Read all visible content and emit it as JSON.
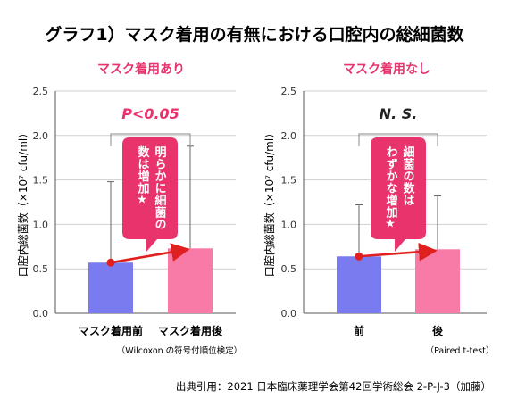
{
  "main_title": "グラフ1）マスク着用の有無における口腔内の総細菌数",
  "source": "出典引用：2021 日本臨床薬理学会第42回学術総会 2-P-J-3（加藤）",
  "colors": {
    "pink": "#e8336d",
    "bar_before": "#7b7bf0",
    "bar_after": "#f87aa6",
    "trend": "#e0201e",
    "grid": "#cfcfcf"
  },
  "chart_data": [
    {
      "type": "bar",
      "title": "マスク着用あり",
      "categories": [
        "マスク着用前",
        "マスク着用後"
      ],
      "values": [
        0.57,
        0.73
      ],
      "error_upper": [
        1.48,
        1.88
      ],
      "ylim": [
        0,
        2.5
      ],
      "yticks": [
        "0.0",
        "0.5",
        "1.0",
        "1.5",
        "2.0",
        "2.5"
      ],
      "ylabel": "口腔内総菌数（×10⁷ cfu/ml）",
      "significance": "P<0.05",
      "callout": [
        "明らかに細菌の",
        "数は増加★"
      ],
      "note": "（Wilcoxon の符号付順位検定）"
    },
    {
      "type": "bar",
      "title": "マスク着用なし",
      "categories": [
        "前",
        "後"
      ],
      "values": [
        0.64,
        0.72
      ],
      "error_upper": [
        1.22,
        1.32
      ],
      "ylim": [
        0,
        2.5
      ],
      "yticks": [
        "0.0",
        "0.5",
        "1.0",
        "1.5",
        "2.0",
        "2.5"
      ],
      "ylabel": "口腔内総菌数（×10⁷ cfu/ml）",
      "significance": "N. S.",
      "callout": [
        "細菌の数は",
        "わずかな増加★"
      ],
      "note": "（Paired t-test）"
    }
  ]
}
